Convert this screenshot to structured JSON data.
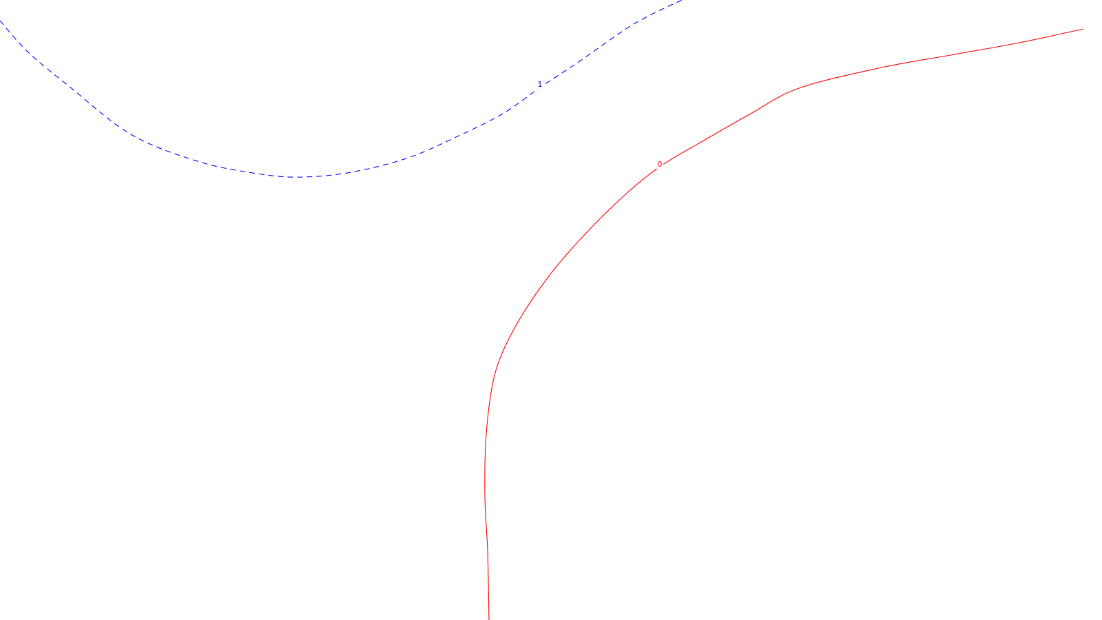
{
  "chart_data": {
    "type": "line",
    "title": "",
    "xlabel": "",
    "ylabel": "",
    "grid": false,
    "legend": "none",
    "series": [
      {
        "level_label": "1",
        "color": "#0000ff",
        "style": "dashed",
        "points": [
          [
            0,
            30
          ],
          [
            40,
            75
          ],
          [
            100,
            125
          ],
          [
            190,
            195
          ],
          [
            290,
            235
          ],
          [
            380,
            253
          ],
          [
            440,
            257
          ],
          [
            510,
            250
          ],
          [
            590,
            230
          ],
          [
            660,
            200
          ],
          [
            730,
            165
          ],
          [
            784,
            127
          ],
          [
            840,
            90
          ],
          [
            920,
            35
          ],
          [
            990,
            0
          ]
        ],
        "label_at": [
          784,
          123
        ]
      },
      {
        "level_label": "0",
        "color": "#ff0000",
        "style": "solid",
        "points": [
          [
            1573,
            42
          ],
          [
            1480,
            62
          ],
          [
            1380,
            80
          ],
          [
            1280,
            98
          ],
          [
            1160,
            128
          ],
          [
            1090,
            165
          ],
          [
            1020,
            205
          ],
          [
            958,
            242
          ],
          [
            905,
            285
          ],
          [
            840,
            350
          ],
          [
            790,
            410
          ],
          [
            745,
            480
          ],
          [
            718,
            545
          ],
          [
            706,
            630
          ],
          [
            704,
            720
          ],
          [
            708,
            800
          ],
          [
            710,
            900
          ]
        ],
        "label_at": [
          958,
          239
        ]
      }
    ]
  }
}
